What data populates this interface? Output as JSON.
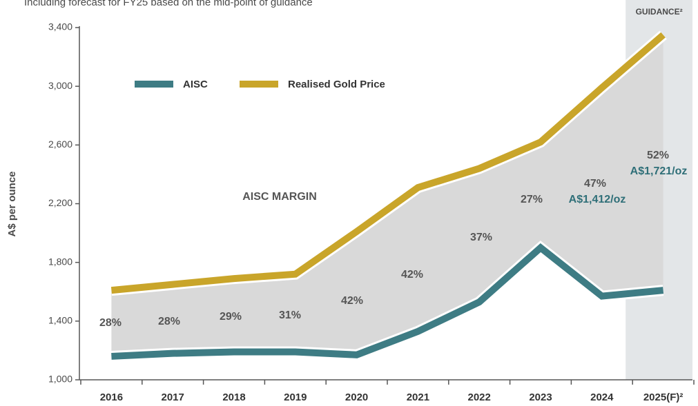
{
  "chart_data": {
    "type": "line",
    "subtitle": "Including forecast for FY25 based on the mid-point of guidance",
    "y_label": "A$ per ounce",
    "categories": [
      "2016",
      "2017",
      "2018",
      "2019",
      "2020",
      "2021",
      "2022",
      "2023",
      "2024",
      "2025(F)²"
    ],
    "series": [
      {
        "name": "AISC",
        "color": "#3e7c84",
        "values": [
          1160,
          1180,
          1190,
          1190,
          1170,
          1330,
          1530,
          1900,
          1570,
          1610
        ]
      },
      {
        "name": "Realised Gold Price",
        "color": "#c9a52a",
        "values": [
          1610,
          1650,
          1690,
          1720,
          2010,
          2310,
          2440,
          2620,
          2990,
          3350
        ]
      }
    ],
    "ylim": [
      1000,
      3400
    ],
    "yticks": [
      {
        "value": 1000,
        "label": "1,000"
      },
      {
        "value": 1400,
        "label": "1,400"
      },
      {
        "value": 1800,
        "label": "1,800"
      },
      {
        "value": 2200,
        "label": "2,200"
      },
      {
        "value": 2600,
        "label": "2,600"
      },
      {
        "value": 3000,
        "label": "3,000"
      },
      {
        "value": 3400,
        "label": "3,400"
      }
    ],
    "area_label": "AISC MARGIN",
    "margin_labels": [
      "28%",
      "28%",
      "29%",
      "31%",
      "42%",
      "42%",
      "37%",
      "27%",
      "47%",
      "52%"
    ],
    "margin_amounts": {
      "2024": "A$1,412/oz",
      "2025": "A$1,721/oz"
    },
    "guidance_label": "GUIDANCE²",
    "area_color": "#d9d9d9",
    "guidance_color": "#e3e6e8"
  }
}
